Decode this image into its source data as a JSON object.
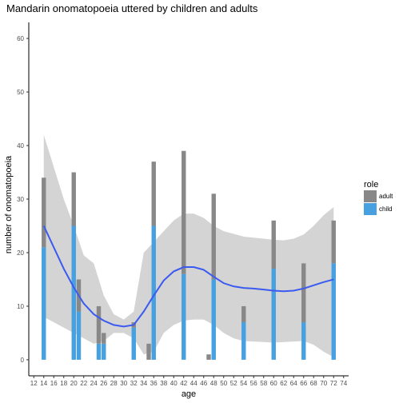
{
  "chart_data": {
    "type": "bar",
    "title": "Mandarin onomatopoeia uttered by children and adults",
    "xlabel": "age",
    "ylabel": "number of onomatopoeia",
    "xlim": [
      11,
      75
    ],
    "ylim": [
      -3,
      63
    ],
    "x_ticks": [
      12,
      14,
      16,
      18,
      20,
      22,
      24,
      26,
      28,
      30,
      32,
      34,
      36,
      38,
      40,
      42,
      44,
      46,
      48,
      50,
      52,
      54,
      56,
      58,
      60,
      62,
      64,
      66,
      68,
      70,
      72,
      74
    ],
    "y_ticks": [
      0,
      10,
      20,
      30,
      40,
      50,
      60
    ],
    "stacked": true,
    "legend": {
      "title": "role",
      "placement": "right",
      "entries": [
        {
          "label": "adult",
          "color": "#888888"
        },
        {
          "label": "child",
          "color": "#47a0e0"
        }
      ]
    },
    "series": [
      {
        "name": "child",
        "color": "#47a0e0",
        "points": [
          {
            "x": 14,
            "y": 21
          },
          {
            "x": 20,
            "y": 25
          },
          {
            "x": 21,
            "y": 9
          },
          {
            "x": 25,
            "y": 3
          },
          {
            "x": 26,
            "y": 3
          },
          {
            "x": 32,
            "y": 6
          },
          {
            "x": 35,
            "y": 0
          },
          {
            "x": 36,
            "y": 25
          },
          {
            "x": 42,
            "y": 16
          },
          {
            "x": 47,
            "y": 0
          },
          {
            "x": 48,
            "y": 15
          },
          {
            "x": 54,
            "y": 7
          },
          {
            "x": 60,
            "y": 17
          },
          {
            "x": 66,
            "y": 7
          },
          {
            "x": 72,
            "y": 18
          }
        ]
      },
      {
        "name": "adult",
        "color": "#888888",
        "points": [
          {
            "x": 14,
            "y": 13
          },
          {
            "x": 20,
            "y": 10
          },
          {
            "x": 21,
            "y": 6
          },
          {
            "x": 25,
            "y": 7
          },
          {
            "x": 26,
            "y": 2
          },
          {
            "x": 32,
            "y": 1
          },
          {
            "x": 35,
            "y": 3
          },
          {
            "x": 36,
            "y": 12
          },
          {
            "x": 42,
            "y": 23
          },
          {
            "x": 47,
            "y": 1
          },
          {
            "x": 48,
            "y": 16
          },
          {
            "x": 54,
            "y": 3
          },
          {
            "x": 60,
            "y": 9
          },
          {
            "x": 66,
            "y": 11
          },
          {
            "x": 72,
            "y": 8
          }
        ]
      }
    ],
    "smooth": {
      "color": "#3a5af0",
      "band_color": "#cfcfcf",
      "points": [
        {
          "x": 14,
          "y": 25,
          "lo": 8,
          "hi": 42
        },
        {
          "x": 16,
          "y": 21,
          "lo": 7,
          "hi": 36
        },
        {
          "x": 18,
          "y": 17,
          "lo": 6,
          "hi": 30
        },
        {
          "x": 20,
          "y": 13.5,
          "lo": 5,
          "hi": 25
        },
        {
          "x": 22,
          "y": 10.5,
          "lo": 4,
          "hi": 19.5
        },
        {
          "x": 24,
          "y": 8.5,
          "lo": 3,
          "hi": 18
        },
        {
          "x": 26,
          "y": 7.3,
          "lo": 3.5,
          "hi": 12
        },
        {
          "x": 28,
          "y": 6.5,
          "lo": 5,
          "hi": 8.5
        },
        {
          "x": 30,
          "y": 6.2,
          "lo": 5,
          "hi": 7.5
        },
        {
          "x": 32,
          "y": 6.5,
          "lo": 4,
          "hi": 9
        },
        {
          "x": 34,
          "y": 9,
          "lo": 1,
          "hi": 20
        },
        {
          "x": 36,
          "y": 12,
          "lo": 1.5,
          "hi": 22
        },
        {
          "x": 38,
          "y": 14.8,
          "lo": 5,
          "hi": 24
        },
        {
          "x": 40,
          "y": 16.5,
          "lo": 6.5,
          "hi": 26
        },
        {
          "x": 42,
          "y": 17.3,
          "lo": 7.3,
          "hi": 27.3
        },
        {
          "x": 44,
          "y": 17.3,
          "lo": 7.5,
          "hi": 27.3
        },
        {
          "x": 46,
          "y": 16.8,
          "lo": 7.5,
          "hi": 26.5
        },
        {
          "x": 48,
          "y": 15.5,
          "lo": 6.5,
          "hi": 25
        },
        {
          "x": 50,
          "y": 14.3,
          "lo": 5,
          "hi": 24
        },
        {
          "x": 52,
          "y": 13.7,
          "lo": 4,
          "hi": 23.5
        },
        {
          "x": 54,
          "y": 13.4,
          "lo": 3.5,
          "hi": 23
        },
        {
          "x": 56,
          "y": 13.3,
          "lo": 3.4,
          "hi": 22.8
        },
        {
          "x": 58,
          "y": 13.1,
          "lo": 3.3,
          "hi": 22.6
        },
        {
          "x": 60,
          "y": 12.9,
          "lo": 3.2,
          "hi": 22.4
        },
        {
          "x": 62,
          "y": 12.8,
          "lo": 3.3,
          "hi": 22.3
        },
        {
          "x": 64,
          "y": 12.9,
          "lo": 3.4,
          "hi": 22.6
        },
        {
          "x": 66,
          "y": 13.3,
          "lo": 3.5,
          "hi": 23.4
        },
        {
          "x": 68,
          "y": 13.9,
          "lo": 2.8,
          "hi": 25
        },
        {
          "x": 70,
          "y": 14.5,
          "lo": 1.5,
          "hi": 27
        },
        {
          "x": 72,
          "y": 15,
          "lo": 0.5,
          "hi": 28.5
        }
      ]
    }
  }
}
